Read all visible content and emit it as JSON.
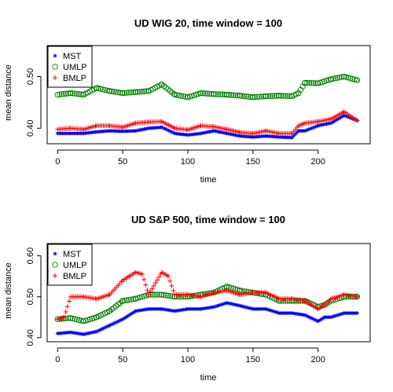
{
  "colors": {
    "MST": "#0000ff",
    "UMLP": "#008000",
    "BMLP": "#ff0000"
  },
  "chart_data": [
    {
      "type": "scatter",
      "title": "UD WIG 20, time window =  100",
      "xlabel": "time",
      "ylabel": "mean distance",
      "xlim": [
        -8,
        240
      ],
      "ylim": [
        0.37,
        0.56
      ],
      "xticks": [
        0,
        50,
        100,
        150,
        200
      ],
      "yticks": [
        0.4,
        0.5
      ],
      "ytick_labels": [
        "0.40",
        "0.50"
      ],
      "legend": {
        "position": "top-left",
        "entries": [
          "MST",
          "UMLP",
          "BMLP"
        ]
      },
      "series": [
        {
          "name": "MST",
          "marker": "star",
          "x": [
            0,
            10,
            20,
            30,
            40,
            50,
            60,
            70,
            80,
            90,
            100,
            110,
            120,
            130,
            140,
            150,
            160,
            170,
            180,
            185,
            190,
            200,
            210,
            220,
            230
          ],
          "y": [
            0.39,
            0.39,
            0.39,
            0.393,
            0.395,
            0.394,
            0.395,
            0.4,
            0.402,
            0.39,
            0.387,
            0.39,
            0.395,
            0.39,
            0.385,
            0.383,
            0.385,
            0.383,
            0.382,
            0.395,
            0.395,
            0.405,
            0.41,
            0.425,
            0.415
          ]
        },
        {
          "name": "UMLP",
          "marker": "circle",
          "x": [
            0,
            10,
            20,
            30,
            40,
            50,
            60,
            70,
            80,
            90,
            100,
            110,
            120,
            130,
            140,
            150,
            160,
            170,
            180,
            185,
            190,
            200,
            210,
            220,
            230
          ],
          "y": [
            0.465,
            0.468,
            0.465,
            0.478,
            0.472,
            0.468,
            0.47,
            0.472,
            0.485,
            0.465,
            0.46,
            0.468,
            0.466,
            0.465,
            0.463,
            0.46,
            0.462,
            0.463,
            0.462,
            0.468,
            0.488,
            0.487,
            0.495,
            0.5,
            0.493
          ]
        },
        {
          "name": "BMLP",
          "marker": "plus",
          "x": [
            0,
            10,
            20,
            30,
            40,
            50,
            60,
            70,
            80,
            90,
            100,
            110,
            120,
            130,
            140,
            150,
            160,
            170,
            180,
            185,
            190,
            200,
            210,
            220,
            230
          ],
          "y": [
            0.398,
            0.4,
            0.398,
            0.405,
            0.405,
            0.402,
            0.41,
            0.412,
            0.413,
            0.4,
            0.397,
            0.405,
            0.403,
            0.398,
            0.392,
            0.39,
            0.395,
            0.39,
            0.39,
            0.405,
            0.41,
            0.413,
            0.418,
            0.432,
            0.415
          ]
        }
      ]
    },
    {
      "type": "scatter",
      "title": "UD S&P 500, time window =  100",
      "xlabel": "time",
      "ylabel": "mean distance",
      "xlim": [
        -8,
        240
      ],
      "ylim": [
        0.39,
        0.63
      ],
      "xticks": [
        0,
        50,
        100,
        150,
        200
      ],
      "yticks": [
        0.4,
        0.5,
        0.6
      ],
      "ytick_labels": [
        "0.40",
        "0.50",
        "0.60"
      ],
      "legend": {
        "position": "top-left",
        "entries": [
          "MST",
          "UMLP",
          "BMLP"
        ]
      },
      "series": [
        {
          "name": "MST",
          "marker": "star",
          "x": [
            0,
            10,
            20,
            30,
            40,
            50,
            60,
            70,
            80,
            90,
            100,
            110,
            120,
            130,
            140,
            150,
            160,
            170,
            180,
            190,
            200,
            205,
            210,
            220,
            230
          ],
          "y": [
            0.41,
            0.413,
            0.408,
            0.415,
            0.43,
            0.445,
            0.465,
            0.47,
            0.47,
            0.465,
            0.47,
            0.47,
            0.475,
            0.485,
            0.478,
            0.47,
            0.47,
            0.46,
            0.46,
            0.455,
            0.44,
            0.45,
            0.45,
            0.46,
            0.46
          ]
        },
        {
          "name": "UMLP",
          "marker": "circle",
          "x": [
            0,
            10,
            20,
            30,
            40,
            50,
            60,
            70,
            80,
            90,
            100,
            110,
            120,
            130,
            140,
            150,
            160,
            170,
            180,
            190,
            200,
            205,
            210,
            220,
            230
          ],
          "y": [
            0.445,
            0.448,
            0.44,
            0.45,
            0.465,
            0.49,
            0.495,
            0.505,
            0.505,
            0.5,
            0.5,
            0.505,
            0.51,
            0.525,
            0.515,
            0.51,
            0.505,
            0.49,
            0.49,
            0.49,
            0.475,
            0.48,
            0.49,
            0.5,
            0.5
          ]
        },
        {
          "name": "BMLP",
          "marker": "plus",
          "x": [
            0,
            5,
            10,
            20,
            30,
            40,
            50,
            55,
            60,
            65,
            70,
            80,
            85,
            90,
            100,
            110,
            120,
            130,
            140,
            150,
            160,
            170,
            180,
            190,
            200,
            205,
            210,
            220,
            230
          ],
          "y": [
            0.445,
            0.45,
            0.5,
            0.5,
            0.495,
            0.505,
            0.54,
            0.55,
            0.56,
            0.555,
            0.505,
            0.56,
            0.55,
            0.505,
            0.505,
            0.5,
            0.51,
            0.515,
            0.505,
            0.51,
            0.51,
            0.495,
            0.495,
            0.49,
            0.47,
            0.48,
            0.495,
            0.505,
            0.5
          ]
        }
      ]
    }
  ]
}
